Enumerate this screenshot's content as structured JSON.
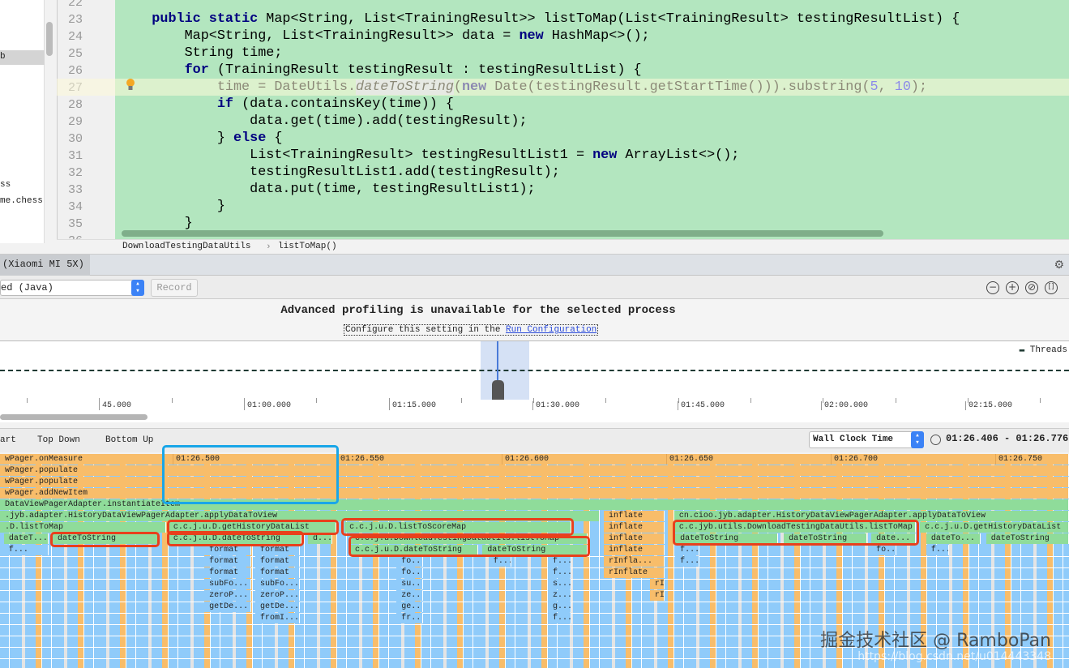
{
  "project_panel": {
    "items": [
      "b",
      "ss",
      "me.chess"
    ]
  },
  "editor": {
    "lines": [
      {
        "n": "22",
        "segs": []
      },
      {
        "n": "23",
        "segs": [
          [
            "    "
          ],
          [
            "public static",
            "kw"
          ],
          [
            " Map<String, List<TrainingResult>> listToMap(List<TrainingResult> testingResultList) {"
          ]
        ]
      },
      {
        "n": "24",
        "segs": [
          [
            "        Map<String, List<TrainingResult>> data = "
          ],
          [
            "new",
            "kw"
          ],
          [
            " HashMap<>();"
          ]
        ]
      },
      {
        "n": "25",
        "segs": [
          [
            "        String time;"
          ]
        ]
      },
      {
        "n": "26",
        "segs": [
          [
            "        "
          ],
          [
            "for",
            "kw"
          ],
          [
            " (TrainingResult testingResult : testingResultList) {"
          ]
        ]
      },
      {
        "n": "27",
        "segs": [
          [
            "            time = DateUtils."
          ],
          [
            "dateToString",
            "it"
          ],
          [
            "("
          ],
          [
            "new",
            "kw"
          ],
          [
            " Date(testingResult.getStartTime())).substring("
          ],
          [
            "5",
            "num"
          ],
          [
            ", "
          ],
          [
            "10",
            "num"
          ],
          [
            ");"
          ]
        ]
      },
      {
        "n": "28",
        "segs": [
          [
            "            "
          ],
          [
            "if",
            "kw"
          ],
          [
            " (data.containsKey(time)) {"
          ]
        ]
      },
      {
        "n": "29",
        "segs": [
          [
            "                data.get(time).add(testingResult);"
          ]
        ]
      },
      {
        "n": "30",
        "segs": [
          [
            "            } "
          ],
          [
            "else",
            "kw"
          ],
          [
            " {"
          ]
        ]
      },
      {
        "n": "31",
        "segs": [
          [
            "                List<TrainingResult> testingResultList1 = "
          ],
          [
            "new",
            "kw"
          ],
          [
            " ArrayList<>();"
          ]
        ]
      },
      {
        "n": "32",
        "segs": [
          [
            "                testingResultList1.add(testingResult);"
          ]
        ]
      },
      {
        "n": "33",
        "segs": [
          [
            "                data.put(time, testingResultList1);"
          ]
        ]
      },
      {
        "n": "34",
        "segs": [
          [
            "            }"
          ]
        ]
      },
      {
        "n": "35",
        "segs": [
          [
            "        }"
          ]
        ]
      },
      {
        "n": "36",
        "segs": []
      }
    ],
    "breadcrumb": [
      "DownloadTestingDataUtils",
      "listToMap()"
    ],
    "breadcrumb_sep": "›"
  },
  "profiler": {
    "device_tab": "(Xiaomi MI 5X)",
    "process_select": "ed (Java)",
    "record_label": "Record",
    "zoom_buttons": [
      "zoom-out",
      "zoom-in",
      "reset-zoom",
      "zoom-to-selection"
    ],
    "message_title": "Advanced profiling is unavailable for the selected process",
    "message_prefix": "Configure this setting in the ",
    "message_link": "Run Configuration",
    "legend": "Threads",
    "timeline_ticks": [
      "45.000",
      "01:00.000",
      "01:15.000",
      "01:30.000",
      "01:45.000",
      "02:00.000",
      "02:15.000"
    ],
    "tabs": [
      "art",
      "Top Down",
      "Bottom Up"
    ],
    "clock_select": "Wall Clock Time",
    "range": "01:26.406 - 01:26.776",
    "flame_axis": [
      "01:26.500",
      "01:26.550",
      "01:26.600",
      "01:26.650",
      "01:26.700",
      "01:26.750"
    ],
    "colors": {
      "app": "#8fdc9a",
      "platform": "#f8bd6a",
      "java": "#8fcbfa",
      "highlight": "#e8401c",
      "selection": "#19a6e8"
    },
    "frames": [
      {
        "d": 0,
        "s": 86.4475,
        "e": 86.7724,
        "c": "platform",
        "l": "wPager.onMeasure"
      },
      {
        "d": 1,
        "s": 86.4475,
        "e": 86.7724,
        "c": "platform",
        "l": "wPager.populate"
      },
      {
        "d": 2,
        "s": 86.4475,
        "e": 86.7724,
        "c": "platform",
        "l": "wPager.populate"
      },
      {
        "d": 3,
        "s": 86.4475,
        "e": 86.7724,
        "c": "platform",
        "l": "wPager.addNewItem"
      },
      {
        "d": 4,
        "s": 86.4475,
        "e": 86.7724,
        "c": "app",
        "l": "DataViewPagerAdapter.instantiateItem"
      },
      {
        "d": 5,
        "s": 86.4475,
        "e": 86.6298,
        "c": "app",
        "l": ".jyb.adapter.HistoryDataViewPagerAdapter.applyDataToView"
      },
      {
        "d": 5,
        "s": 86.631,
        "e": 86.6495,
        "c": "platform",
        "l": "inflate"
      },
      {
        "d": 5,
        "s": 86.6524,
        "e": 86.7724,
        "c": "app",
        "l": "cn.cioo.jyb.adapter.HistoryDataViewPagerAdapter.applyDataToView"
      },
      {
        "d": 6,
        "s": 86.4475,
        "e": 86.498,
        "c": "app",
        "l": ".D.listToMap"
      },
      {
        "d": 6,
        "s": 86.4987,
        "e": 86.5497,
        "c": "app",
        "l": "c.c.j.u.D.getHistoryDataList"
      },
      {
        "d": 6,
        "s": 86.5522,
        "e": 86.6211,
        "c": "app",
        "l": "c.c.j.u.D.listToScoreMap"
      },
      {
        "d": 6,
        "s": 86.631,
        "e": 86.6495,
        "c": "platform",
        "l": "inflate"
      },
      {
        "d": 6,
        "s": 86.6524,
        "e": 86.7258,
        "c": "app",
        "l": "c.c.jyb.utils.DownloadTestingDataUtils.listToMap"
      },
      {
        "d": 6,
        "s": 86.7271,
        "e": 86.7724,
        "c": "app",
        "l": "c.c.j.u.D.getHistoryDataList"
      },
      {
        "d": 7,
        "s": 86.4487,
        "e": 86.4623,
        "c": "app",
        "l": "dateT..."
      },
      {
        "d": 7,
        "s": 86.4635,
        "e": 86.4955,
        "c": "app",
        "l": "dateToString"
      },
      {
        "d": 7,
        "s": 86.4987,
        "e": 86.5391,
        "c": "app",
        "l": "c.c.j.u.D.dateToString"
      },
      {
        "d": 7,
        "s": 86.5411,
        "e": 86.5485,
        "c": "app",
        "l": "d..."
      },
      {
        "d": 7,
        "s": 86.5539,
        "e": 86.6261,
        "c": "app",
        "l": "c.c.j.u.DownloadTestingDataUtils.listToMap"
      },
      {
        "d": 7,
        "s": 86.631,
        "e": 86.6495,
        "c": "platform",
        "l": "inflate"
      },
      {
        "d": 7,
        "s": 86.6527,
        "e": 86.6839,
        "c": "app",
        "l": "dateToString"
      },
      {
        "d": 7,
        "s": 86.6857,
        "e": 86.711,
        "c": "app",
        "l": "dateToString"
      },
      {
        "d": 7,
        "s": 86.7123,
        "e": 86.7258,
        "c": "app",
        "l": "date..."
      },
      {
        "d": 7,
        "s": 86.729,
        "e": 86.7455,
        "c": "app",
        "l": "dateTo..."
      },
      {
        "d": 7,
        "s": 86.7472,
        "e": 86.7724,
        "c": "app",
        "l": "dateToString"
      },
      {
        "d": 8,
        "s": 86.4487,
        "e": 86.4623,
        "c": "java",
        "l": "f..."
      },
      {
        "d": 8,
        "s": 86.5096,
        "e": 86.5238,
        "c": "java",
        "l": "format"
      },
      {
        "d": 8,
        "s": 86.5251,
        "e": 86.5386,
        "c": "java",
        "l": "format"
      },
      {
        "d": 8,
        "s": 86.5539,
        "e": 86.5928,
        "c": "app",
        "l": "c.c.j.u.D.dateToString"
      },
      {
        "d": 8,
        "s": 86.5941,
        "e": 86.6261,
        "c": "app",
        "l": "dateToString"
      },
      {
        "d": 8,
        "s": 86.631,
        "e": 86.6495,
        "c": "platform",
        "l": "inflate"
      },
      {
        "d": 8,
        "s": 86.6527,
        "e": 86.66,
        "c": "java",
        "l": "f..."
      },
      {
        "d": 8,
        "s": 86.7123,
        "e": 86.72,
        "c": "java",
        "l": "fo..."
      },
      {
        "d": 8,
        "s": 86.729,
        "e": 86.736,
        "c": "java",
        "l": "f..."
      },
      {
        "d": 9,
        "s": 86.5096,
        "e": 86.5238,
        "c": "java",
        "l": "format"
      },
      {
        "d": 9,
        "s": 86.5251,
        "e": 86.5386,
        "c": "java",
        "l": "format"
      },
      {
        "d": 9,
        "s": 86.568,
        "e": 86.576,
        "c": "java",
        "l": "fo..."
      },
      {
        "d": 9,
        "s": 86.596,
        "e": 86.603,
        "c": "java",
        "l": "f..."
      },
      {
        "d": 9,
        "s": 86.614,
        "e": 86.6211,
        "c": "java",
        "l": "f..."
      },
      {
        "d": 9,
        "s": 86.631,
        "e": 86.6495,
        "c": "platform",
        "l": "rInfla..."
      },
      {
        "d": 9,
        "s": 86.6527,
        "e": 86.66,
        "c": "java",
        "l": "f..."
      },
      {
        "d": 10,
        "s": 86.5096,
        "e": 86.5238,
        "c": "java",
        "l": "format"
      },
      {
        "d": 10,
        "s": 86.5251,
        "e": 86.5386,
        "c": "java",
        "l": "format"
      },
      {
        "d": 10,
        "s": 86.568,
        "e": 86.576,
        "c": "java",
        "l": "fo..."
      },
      {
        "d": 10,
        "s": 86.614,
        "e": 86.6211,
        "c": "java",
        "l": "f..."
      },
      {
        "d": 10,
        "s": 86.631,
        "e": 86.6495,
        "c": "platform",
        "l": "rInflate"
      },
      {
        "d": 11,
        "s": 86.5096,
        "e": 86.5238,
        "c": "java",
        "l": "subFo..."
      },
      {
        "d": 11,
        "s": 86.5251,
        "e": 86.5386,
        "c": "java",
        "l": "subFo..."
      },
      {
        "d": 11,
        "s": 86.568,
        "e": 86.576,
        "c": "java",
        "l": "su..."
      },
      {
        "d": 11,
        "s": 86.614,
        "e": 86.6211,
        "c": "java",
        "l": "s..."
      },
      {
        "d": 11,
        "s": 86.645,
        "e": 86.6495,
        "c": "platform",
        "l": "rI..."
      },
      {
        "d": 12,
        "s": 86.5096,
        "e": 86.5238,
        "c": "java",
        "l": "zeroP..."
      },
      {
        "d": 12,
        "s": 86.5251,
        "e": 86.5386,
        "c": "java",
        "l": "zeroP..."
      },
      {
        "d": 12,
        "s": 86.568,
        "e": 86.576,
        "c": "java",
        "l": "ze..."
      },
      {
        "d": 12,
        "s": 86.614,
        "e": 86.6211,
        "c": "java",
        "l": "z..."
      },
      {
        "d": 12,
        "s": 86.645,
        "e": 86.6495,
        "c": "platform",
        "l": "rI..."
      },
      {
        "d": 13,
        "s": 86.5096,
        "e": 86.5238,
        "c": "java",
        "l": "getDe..."
      },
      {
        "d": 13,
        "s": 86.5251,
        "e": 86.5386,
        "c": "java",
        "l": "getDe..."
      },
      {
        "d": 13,
        "s": 86.568,
        "e": 86.576,
        "c": "java",
        "l": "ge..."
      },
      {
        "d": 13,
        "s": 86.614,
        "e": 86.6211,
        "c": "java",
        "l": "g..."
      },
      {
        "d": 14,
        "s": 86.5251,
        "e": 86.5386,
        "c": "java",
        "l": "fromI..."
      },
      {
        "d": 14,
        "s": 86.568,
        "e": 86.576,
        "c": "java",
        "l": "fr..."
      },
      {
        "d": 14,
        "s": 86.614,
        "e": 86.6211,
        "c": "java",
        "l": "f..."
      }
    ]
  },
  "watermark": {
    "main": "掘金技术社区 @ RamboPan",
    "url": "https://blog.csdn.net/u014443348"
  }
}
